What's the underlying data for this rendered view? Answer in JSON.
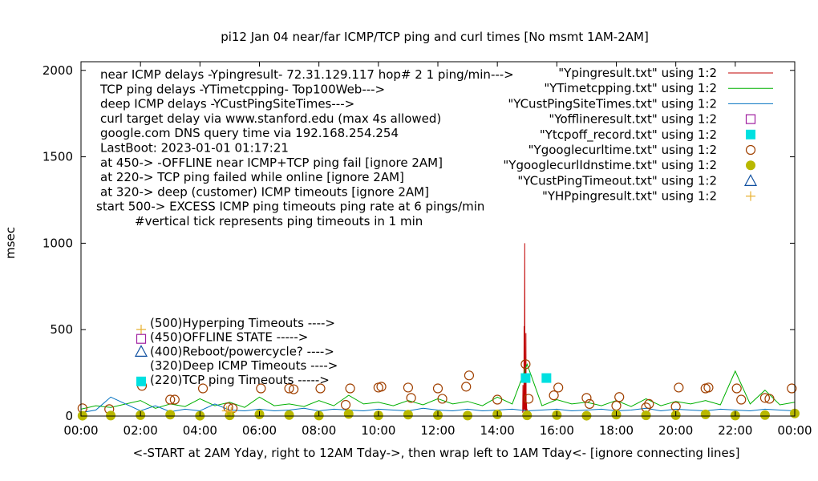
{
  "chart_data": {
    "type": "line",
    "title": "pi12 Jan 04  near/far ICMP/TCP ping and curl times [No msmt 1AM-2AM]",
    "xlabel": "<-START at 2AM Yday, right to 12AM Tday->, then wrap left to 1AM Tday<- [ignore connecting lines]",
    "ylabel": "msec",
    "xlim": [
      0,
      24
    ],
    "ylim": [
      0,
      2050
    ],
    "grid": false,
    "legend_placement": "top-right",
    "x_ticks": [
      "00:00",
      "02:00",
      "04:00",
      "06:00",
      "08:00",
      "10:00",
      "12:00",
      "14:00",
      "16:00",
      "18:00",
      "20:00",
      "22:00",
      "00:00"
    ],
    "y_ticks": [
      0,
      500,
      1000,
      1500,
      2000
    ],
    "y_tick_labels": [
      "0",
      "500",
      "1000",
      "1500",
      "2000"
    ],
    "notes": [
      "near ICMP delays -Ypingresult- 72.31.129.117 hop# 2  1 ping/min--->",
      "TCP ping delays -YTimetcpping- Top100Web--->",
      "deep ICMP delays -YCustPingSiteTimes--->",
      "curl target delay via www.stanford.edu (max 4s allowed)",
      "google.com DNS query time via 192.168.254.254",
      "LastBoot: 2023-01-01 01:17:21",
      "at 450-> -OFFLINE near ICMP+TCP ping fail [ignore 2AM]",
      "at 220-> TCP ping failed while online [ignore 2AM]",
      "at 320-> deep (customer) ICMP timeouts [ignore 2AM]",
      "start 500-> EXCESS ICMP ping timeouts ping rate at 6 pings/min",
      "#vertical tick represents ping timeouts in 1 min"
    ],
    "marker_key": [
      {
        "label": "(500)Hyperping Timeouts ---->",
        "symbol": "plus",
        "color": "#e8b030"
      },
      {
        "label": "(450)OFFLINE STATE ----->",
        "symbol": "open-square",
        "color": "#a020a0"
      },
      {
        "label": "(400)Reboot/powercycle? ---->",
        "symbol": "open-triangle",
        "color": "#1050a0"
      },
      {
        "label": "(320)Deep ICMP Timeouts ---->",
        "symbol": "none",
        "color": "#000000"
      },
      {
        "label": "(220)TCP ping Timeouts ----->",
        "symbol": "filled-square",
        "color": "#00e0e0"
      }
    ],
    "legend": [
      {
        "label": "\"Ypingresult.txt\" using 1:2",
        "symbol": "line",
        "color": "#c00000"
      },
      {
        "label": "\"YTimetcpping.txt\" using 1:2",
        "symbol": "line",
        "color": "#00b000"
      },
      {
        "label": "\"YCustPingSiteTimes.txt\" using 1:2",
        "symbol": "line",
        "color": "#0070c0"
      },
      {
        "label": "\"Yofflineresult.txt\" using 1:2",
        "symbol": "open-square",
        "color": "#a020a0"
      },
      {
        "label": "\"Ytcpoff_record.txt\" using 1:2",
        "symbol": "filled-square",
        "color": "#00e0e0"
      },
      {
        "label": "\"Ygooglecurltime.txt\" using 1:2",
        "symbol": "open-circle",
        "color": "#a04000"
      },
      {
        "label": "\"YgooglecurlIdnstime.txt\" using 1:2",
        "symbol": "filled-circle",
        "color": "#b8b800"
      },
      {
        "label": "\"YCustPingTimeout.txt\" using 1:2",
        "symbol": "open-triangle",
        "color": "#1050a0"
      },
      {
        "label": "\"YHPpingresult.txt\" using 1:2",
        "symbol": "plus",
        "color": "#e8b030"
      }
    ],
    "series": [
      {
        "name": "\"Ypingresult.txt\" using 1:2",
        "color": "#c00000",
        "x": [
          14.85,
          14.86,
          14.87,
          14.88,
          14.89,
          14.9,
          14.91,
          14.92,
          14.93,
          14.94,
          14.95,
          14.96,
          14.97,
          14.98,
          14.99,
          15.0,
          15.01,
          15.02,
          15.03,
          15.04
        ],
        "y": [
          20,
          180,
          25,
          120,
          30,
          520,
          40,
          1000,
          25,
          60,
          30,
          480,
          20,
          80,
          25,
          40,
          20,
          30,
          20,
          15
        ]
      },
      {
        "name": "\"YTimetcpping.txt\" using 1:2",
        "color": "#00b000",
        "x": [
          0.0,
          0.5,
          1.0,
          2.0,
          2.5,
          3.0,
          3.5,
          4.0,
          4.5,
          5.0,
          5.5,
          6.0,
          6.5,
          7.0,
          7.5,
          8.0,
          8.5,
          9.0,
          9.5,
          10.0,
          10.5,
          11.0,
          11.5,
          12.0,
          12.5,
          13.0,
          13.5,
          14.0,
          14.5,
          15.0,
          15.5,
          16.0,
          16.5,
          17.0,
          17.5,
          18.0,
          18.5,
          19.0,
          19.5,
          20.0,
          20.5,
          21.0,
          21.5,
          22.0,
          22.5,
          23.0,
          23.5,
          24.0
        ],
        "y": [
          40,
          60,
          50,
          90,
          45,
          70,
          55,
          100,
          60,
          80,
          50,
          110,
          60,
          70,
          55,
          90,
          60,
          120,
          70,
          80,
          60,
          90,
          65,
          100,
          70,
          85,
          60,
          110,
          70,
          300,
          60,
          95,
          70,
          80,
          60,
          90,
          55,
          100,
          60,
          85,
          70,
          90,
          65,
          260,
          70,
          150,
          65,
          80
        ]
      },
      {
        "name": "\"YCustPingSiteTimes.txt\" using 1:2",
        "color": "#0070c0",
        "x": [
          0.0,
          0.5,
          1.0,
          2.0,
          2.5,
          3.0,
          3.5,
          4.0,
          4.5,
          5.0,
          5.5,
          6.0,
          6.5,
          7.0,
          7.5,
          8.0,
          8.5,
          9.0,
          9.5,
          10.0,
          10.5,
          11.0,
          11.5,
          12.0,
          12.5,
          13.0,
          13.5,
          14.0,
          14.5,
          15.0,
          15.5,
          16.0,
          16.5,
          17.0,
          17.5,
          18.0,
          18.5,
          19.0,
          19.5,
          20.0,
          20.5,
          21.0,
          21.5,
          22.0,
          22.5,
          23.0,
          23.5,
          24.0
        ],
        "y": [
          20,
          35,
          110,
          30,
          60,
          25,
          40,
          30,
          70,
          35,
          30,
          40,
          30,
          35,
          45,
          30,
          40,
          35,
          30,
          40,
          35,
          30,
          45,
          35,
          30,
          40,
          30,
          35,
          40,
          30,
          35,
          40,
          30,
          35,
          40,
          30,
          35,
          45,
          30,
          40,
          35,
          30,
          40,
          35,
          30,
          40,
          35,
          30
        ]
      },
      {
        "name": "\"Ytcpoff_record.txt\" using 1:2",
        "color": "#00e0e0",
        "marker": "filled-square",
        "x": [
          14.95,
          15.65
        ],
        "y": [
          220,
          220
        ]
      },
      {
        "name": "\"Ygooglecurltime.txt\" using 1:2",
        "color": "#a04000",
        "marker": "open-circle",
        "x": [
          0.05,
          0.95,
          2.05,
          3.0,
          3.15,
          4.1,
          4.95,
          5.1,
          6.05,
          7.0,
          7.15,
          8.05,
          8.9,
          9.05,
          10.0,
          10.1,
          11.0,
          11.1,
          12.0,
          12.15,
          12.95,
          13.05,
          14.0,
          14.95,
          15.05,
          15.9,
          16.05,
          17.0,
          17.1,
          18.0,
          18.1,
          19.0,
          19.1,
          20.0,
          20.1,
          21.0,
          21.1,
          22.05,
          22.2,
          23.0,
          23.15,
          23.9
        ],
        "y": [
          45,
          40,
          175,
          95,
          95,
          160,
          50,
          45,
          160,
          160,
          155,
          160,
          65,
          160,
          165,
          170,
          165,
          105,
          160,
          100,
          170,
          235,
          95,
          300,
          100,
          120,
          165,
          105,
          70,
          60,
          110,
          50,
          70,
          55,
          165,
          160,
          165,
          160,
          95,
          105,
          100,
          160
        ]
      },
      {
        "name": "\"YgooglecurlIdnstime.txt\" using 1:2",
        "color": "#b8b800",
        "marker": "filled-circle",
        "x": [
          0.05,
          1.0,
          2.0,
          3.0,
          4.0,
          5.0,
          6.0,
          7.0,
          8.0,
          9.0,
          10.0,
          11.0,
          12.0,
          13.0,
          14.0,
          15.0,
          16.0,
          17.0,
          18.0,
          19.0,
          20.0,
          21.0,
          22.0,
          23.0,
          24.0
        ],
        "y": [
          2,
          3,
          5,
          8,
          2,
          4,
          10,
          6,
          3,
          12,
          4,
          8,
          5,
          3,
          10,
          4,
          6,
          2,
          8,
          4,
          5,
          10,
          3,
          6,
          15
        ]
      },
      {
        "name": "\"YHPpingresult.txt\" using 1:2",
        "color": "#e8b030",
        "marker": "plus",
        "x": [
          4.9,
          5.05
        ],
        "y": [
          30,
          25
        ]
      }
    ]
  }
}
